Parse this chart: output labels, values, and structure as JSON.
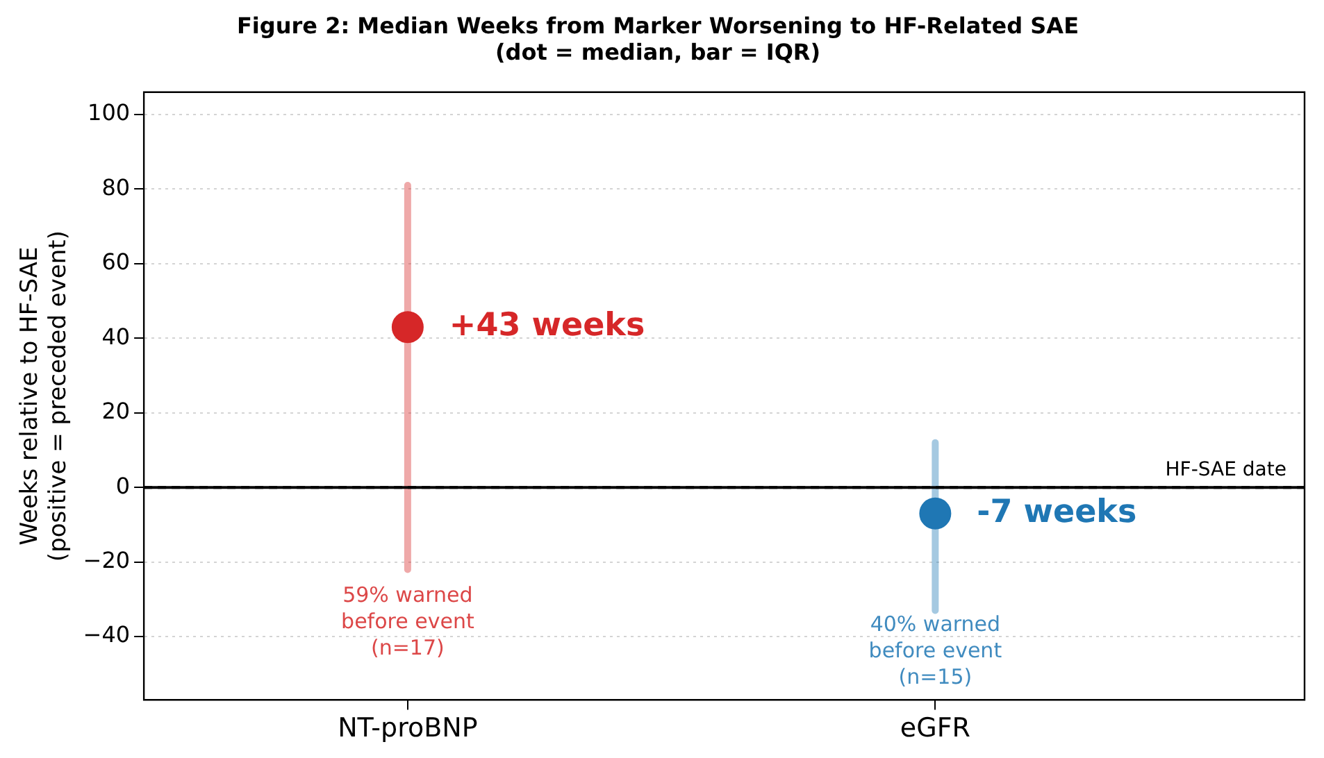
{
  "chart_data": {
    "type": "scatter",
    "title": "Figure 2: Median Weeks from Marker Worsening to HF-Related SAE\n(dot = median, bar = IQR)",
    "ylabel": "Weeks relative to HF-SAE\n(positive = preceded event)",
    "categories": [
      "NT-proBNP",
      "eGFR"
    ],
    "series": [
      {
        "x": [
          "NT-proBNP",
          "eGFR"
        ],
        "values": [
          43,
          -7
        ],
        "errors": [
          [
            -22,
            81
          ],
          [
            -33,
            12
          ]
        ],
        "colors": [
          "#d62728",
          "#1f77b4"
        ]
      }
    ],
    "ylim": [
      -57,
      106
    ],
    "yticks": [
      -40,
      -20,
      0,
      20,
      40,
      60,
      80,
      100
    ],
    "grid": "y",
    "legend": false,
    "marker": "circle",
    "ref_lines": [
      {
        "axis": "y",
        "value": 0,
        "label": "HF-SAE date",
        "color": "#000000",
        "line_style": "dashed"
      }
    ],
    "annotations": [
      {
        "text": "+43 weeks",
        "x": "NT-proBNP",
        "y": 43
      },
      {
        "text": "-7 weeks",
        "x": "eGFR",
        "y": -7
      },
      {
        "text": "59% warned\nbefore event\n(n=17)",
        "x": "NT-proBNP",
        "y": -22
      },
      {
        "text": "40% warned\nbefore event\n(n=15)",
        "x": "eGFR",
        "y": -33
      }
    ]
  }
}
